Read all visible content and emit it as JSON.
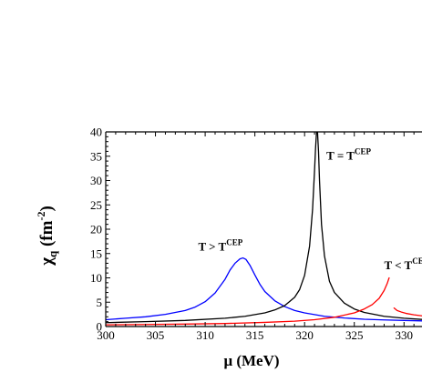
{
  "chart_data": {
    "type": "line",
    "xlabel": "μ (MeV)",
    "ylabel": "χq (fm-2)",
    "ylabel_parts": {
      "main": "χ",
      "sub": "q",
      "unit_open": " (fm",
      "unit_sup": "-2",
      "unit_close": ")"
    },
    "xlim": [
      300,
      333
    ],
    "ylim": [
      0,
      40
    ],
    "xticks": [
      300,
      305,
      310,
      315,
      320,
      325,
      330
    ],
    "yticks": [
      0,
      5,
      10,
      15,
      20,
      25,
      30,
      35,
      40
    ],
    "grid": false,
    "annotations": [
      {
        "text": "T = TCEP",
        "base": "T = T",
        "sup": "CEP",
        "x": 322.2,
        "y": 34.3
      },
      {
        "text": "T > TCEP",
        "base": "T > T",
        "sup": "CEP",
        "x": 309.3,
        "y": 15.6
      },
      {
        "text": "T < TCEP",
        "base": "T < T",
        "sup": "CEP",
        "x": 328.0,
        "y": 11.8
      }
    ],
    "series": [
      {
        "color": "#0000ff",
        "x": [
          300,
          302,
          304,
          306,
          308,
          309,
          310,
          311,
          312,
          312.5,
          313,
          313.5,
          313.8,
          314.1,
          314.5,
          315,
          315.5,
          316,
          317,
          318,
          319,
          320,
          322,
          324,
          326,
          328,
          330,
          333
        ],
        "y": [
          1.4,
          1.7,
          2.0,
          2.5,
          3.3,
          4.0,
          5.1,
          6.9,
          9.7,
          11.6,
          13.0,
          13.9,
          14.1,
          13.8,
          12.6,
          10.6,
          8.7,
          7.2,
          5.3,
          4.1,
          3.3,
          2.8,
          2.1,
          1.75,
          1.5,
          1.35,
          1.25,
          1.1
        ]
      },
      {
        "color": "#000000",
        "x": [
          300,
          304,
          308,
          312,
          314,
          316,
          317,
          318,
          319,
          319.5,
          320,
          320.5,
          320.8,
          321.0,
          321.1,
          321.2,
          321.3,
          321.4,
          321.5,
          321.7,
          322,
          322.5,
          323,
          324,
          325,
          326,
          328,
          330,
          333
        ],
        "y": [
          0.8,
          1.0,
          1.25,
          1.7,
          2.1,
          2.8,
          3.4,
          4.3,
          6.0,
          7.6,
          10.5,
          16.5,
          24.0,
          32.0,
          36.5,
          40.0,
          40.0,
          36.0,
          30.0,
          21.0,
          14.5,
          9.3,
          7.0,
          4.8,
          3.6,
          2.9,
          2.1,
          1.7,
          1.3
        ]
      },
      {
        "color": "#ff0000",
        "segments": [
          {
            "x": [
              300,
              304,
              308,
              312,
              316,
              319,
              321,
              323,
              325,
              326,
              326.8,
              327.5,
              328.0,
              328.3,
              328.5
            ],
            "y": [
              0.35,
              0.42,
              0.5,
              0.62,
              0.85,
              1.1,
              1.4,
              1.9,
              2.8,
              3.6,
              4.5,
              5.8,
              7.4,
              8.8,
              10.0
            ]
          },
          {
            "x": [
              329.0,
              329.3,
              329.7,
              330.2,
              331,
              332,
              333
            ],
            "y": [
              3.8,
              3.3,
              3.0,
              2.7,
              2.4,
              2.15,
              1.95
            ]
          }
        ]
      }
    ]
  }
}
